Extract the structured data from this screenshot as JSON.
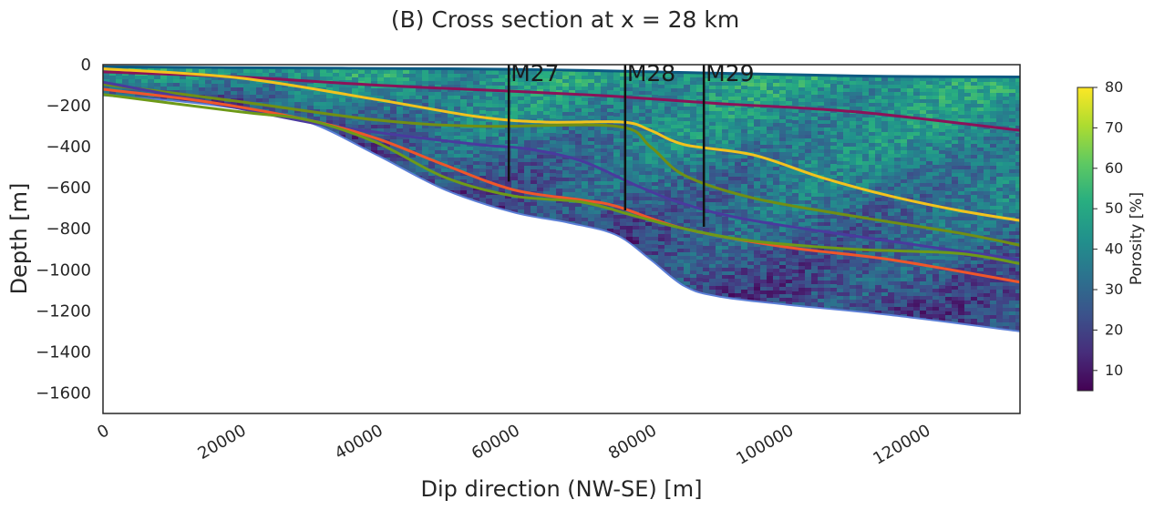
{
  "chart_data": {
    "type": "heatmap",
    "title": "(B) Cross section at x = 28 km",
    "xlabel": "Dip direction (NW-SE) [m]",
    "ylabel": "Depth [m]",
    "xlim": [
      0,
      134000
    ],
    "ylim": [
      -1700,
      0
    ],
    "x_ticks": [
      0,
      20000,
      40000,
      60000,
      80000,
      100000,
      120000
    ],
    "y_ticks": [
      0,
      -200,
      -400,
      -600,
      -800,
      -1000,
      -1200,
      -1400,
      -1600
    ],
    "grid": false,
    "colorbar": {
      "label": "Porosity [%]",
      "range": [
        5,
        80
      ],
      "ticks": [
        10,
        20,
        30,
        40,
        50,
        60,
        70,
        80
      ],
      "colormap": "viridis"
    },
    "domain": {
      "top_depth": [
        [
          0,
          -10
        ],
        [
          20000,
          -15
        ],
        [
          50000,
          -20
        ],
        [
          70000,
          -28
        ],
        [
          110000,
          -55
        ],
        [
          134000,
          -60
        ]
      ],
      "bottom_depth": [
        [
          0,
          -150
        ],
        [
          10000,
          -175
        ],
        [
          20000,
          -215
        ],
        [
          30000,
          -280
        ],
        [
          40000,
          -440
        ],
        [
          50000,
          -610
        ],
        [
          60000,
          -720
        ],
        [
          68000,
          -770
        ],
        [
          75000,
          -830
        ],
        [
          80000,
          -950
        ],
        [
          85000,
          -1080
        ],
        [
          90000,
          -1130
        ],
        [
          100000,
          -1170
        ],
        [
          115000,
          -1220
        ],
        [
          134000,
          -1300
        ]
      ]
    },
    "horizons": [
      {
        "color": "#8b1259",
        "points": [
          [
            0,
            -35
          ],
          [
            20000,
            -60
          ],
          [
            40000,
            -100
          ],
          [
            60000,
            -130
          ],
          [
            75000,
            -155
          ],
          [
            90000,
            -190
          ],
          [
            110000,
            -230
          ],
          [
            134000,
            -320
          ]
        ]
      },
      {
        "color": "#f2c31e",
        "points": [
          [
            0,
            -20
          ],
          [
            20000,
            -65
          ],
          [
            40000,
            -170
          ],
          [
            55000,
            -255
          ],
          [
            65000,
            -280
          ],
          [
            76000,
            -280
          ],
          [
            80000,
            -320
          ],
          [
            85000,
            -390
          ],
          [
            95000,
            -440
          ],
          [
            105000,
            -550
          ],
          [
            115000,
            -640
          ],
          [
            125000,
            -710
          ],
          [
            134000,
            -760
          ]
        ]
      },
      {
        "color": "#718f14",
        "points": [
          [
            0,
            -95
          ],
          [
            20000,
            -180
          ],
          [
            40000,
            -270
          ],
          [
            55000,
            -300
          ],
          [
            75000,
            -300
          ],
          [
            80000,
            -400
          ],
          [
            85000,
            -540
          ],
          [
            95000,
            -650
          ],
          [
            110000,
            -740
          ],
          [
            125000,
            -820
          ],
          [
            134000,
            -880
          ]
        ]
      },
      {
        "color": "#4a3a9e",
        "points": [
          [
            0,
            -85
          ],
          [
            15000,
            -180
          ],
          [
            30000,
            -280
          ],
          [
            40000,
            -330
          ],
          [
            55000,
            -390
          ],
          [
            62000,
            -410
          ],
          [
            70000,
            -470
          ],
          [
            78000,
            -590
          ],
          [
            85000,
            -680
          ],
          [
            95000,
            -760
          ],
          [
            115000,
            -860
          ],
          [
            134000,
            -950
          ]
        ]
      },
      {
        "color": "#f0562a",
        "points": [
          [
            0,
            -120
          ],
          [
            15000,
            -180
          ],
          [
            30000,
            -270
          ],
          [
            40000,
            -360
          ],
          [
            50000,
            -490
          ],
          [
            60000,
            -610
          ],
          [
            70000,
            -660
          ],
          [
            75000,
            -690
          ],
          [
            85000,
            -800
          ],
          [
            100000,
            -890
          ],
          [
            115000,
            -950
          ],
          [
            134000,
            -1060
          ]
        ]
      },
      {
        "color": "#6e9a18",
        "points": [
          [
            0,
            -145
          ],
          [
            20000,
            -230
          ],
          [
            30000,
            -270
          ],
          [
            40000,
            -380
          ],
          [
            50000,
            -550
          ],
          [
            60000,
            -640
          ],
          [
            70000,
            -670
          ],
          [
            78000,
            -740
          ],
          [
            85000,
            -800
          ],
          [
            95000,
            -860
          ],
          [
            110000,
            -900
          ],
          [
            125000,
            -920
          ],
          [
            134000,
            -970
          ]
        ]
      }
    ],
    "wells": [
      {
        "name": "M27",
        "x": 59300,
        "top": 0,
        "bottom": -570
      },
      {
        "name": "M28",
        "x": 76300,
        "top": 0,
        "bottom": -710
      },
      {
        "name": "M29",
        "x": 87800,
        "top": 0,
        "bottom": -790
      }
    ]
  }
}
